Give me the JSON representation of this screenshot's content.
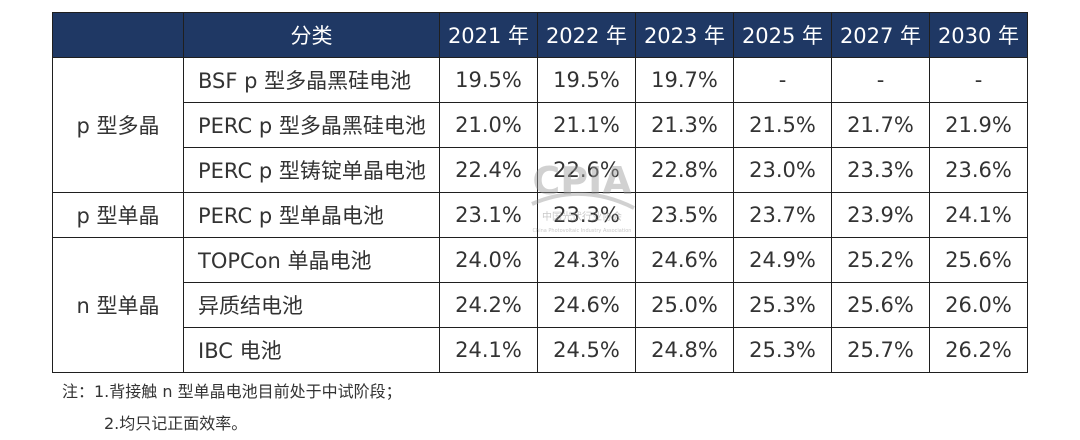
{
  "header": {
    "category_label": "分类",
    "years": [
      "2021 年",
      "2022 年",
      "2023 年",
      "2025 年",
      "2027 年",
      "2030 年"
    ]
  },
  "rows": [
    {
      "group": "p 型多晶",
      "category": "BSF p 型多晶黑硅电池",
      "values": [
        "19.5%",
        "19.5%",
        "19.7%",
        "-",
        "-",
        "-"
      ]
    },
    {
      "group": "",
      "category": "PERC p 型多晶黑硅电池",
      "values": [
        "21.0%",
        "21.1%",
        "21.3%",
        "21.5%",
        "21.7%",
        "21.9%"
      ]
    },
    {
      "group": "",
      "category": "PERC p 型铸锭单晶电池",
      "values": [
        "22.4%",
        "22.6%",
        "22.8%",
        "23.0%",
        "23.3%",
        "23.6%"
      ]
    },
    {
      "group": "p 型单晶",
      "category": "PERC p 型单晶电池",
      "values": [
        "23.1%",
        "23.3%",
        "23.5%",
        "23.7%",
        "23.9%",
        "24.1%"
      ]
    },
    {
      "group": "n 型单晶",
      "category": "TOPCon 单晶电池",
      "values": [
        "24.0%",
        "24.3%",
        "24.6%",
        "24.9%",
        "25.2%",
        "25.6%"
      ]
    },
    {
      "group": "",
      "category": "异质结电池",
      "values": [
        "24.2%",
        "24.6%",
        "25.0%",
        "25.3%",
        "25.6%",
        "26.0%"
      ]
    },
    {
      "group": "",
      "category": "IBC 电池",
      "values": [
        "24.1%",
        "24.5%",
        "24.8%",
        "25.3%",
        "25.7%",
        "26.2%"
      ]
    }
  ],
  "notes": {
    "line1": "注：1.背接触 n 型单晶电池目前处于中试阶段；",
    "line2": "2.均只记正面效率。"
  },
  "watermark": {
    "logo": "CPIA",
    "name_cn": "中国光伏行业协会",
    "name_en": "China Photovoltaic Industry Association"
  },
  "colors": {
    "header_bg": "#1f3864",
    "header_text": "#ffffff",
    "border": "#1f1f1f",
    "text": "#333333"
  }
}
